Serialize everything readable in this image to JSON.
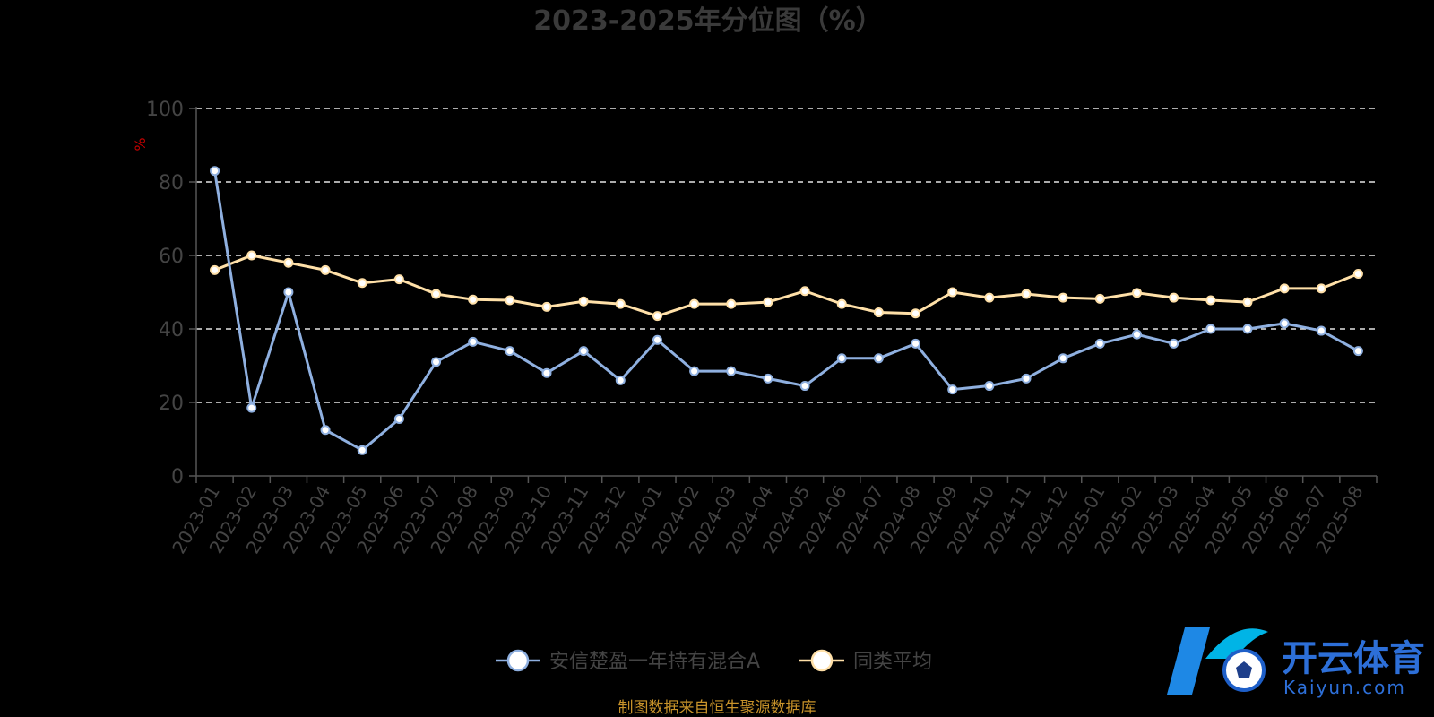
{
  "chart_data": {
    "type": "line",
    "title": "2023-2025年分位图（%）",
    "ylabel": "%",
    "ylim": [
      0,
      100
    ],
    "yticks": [
      0,
      20,
      40,
      60,
      80,
      100
    ],
    "grid": true,
    "legend_position": "bottom",
    "categories": [
      "2023-01",
      "2023-02",
      "2023-03",
      "2023-04",
      "2023-05",
      "2023-06",
      "2023-07",
      "2023-08",
      "2023-09",
      "2023-10",
      "2023-11",
      "2023-12",
      "2024-01",
      "2024-02",
      "2024-03",
      "2024-04",
      "2024-05",
      "2024-06",
      "2024-07",
      "2024-08",
      "2024-09",
      "2024-10",
      "2024-11",
      "2024-12",
      "2025-01",
      "2025-02",
      "2025-03",
      "2025-04",
      "2025-05",
      "2025-06",
      "2025-07",
      "2025-08"
    ],
    "series": [
      {
        "name": "安信楚盈一年持有混合A",
        "color": "#8fb0e0",
        "values": [
          83,
          18.5,
          50,
          12.5,
          7,
          15.5,
          31,
          36.5,
          34,
          28,
          34,
          26,
          37,
          28.5,
          28.5,
          26.5,
          24.5,
          32,
          32,
          36,
          23.5,
          24.5,
          26.5,
          32,
          36,
          38.5,
          36,
          40,
          40,
          41.5,
          39.5,
          34
        ]
      },
      {
        "name": "同类平均",
        "color": "#ffe0a8",
        "values": [
          56,
          60,
          58,
          56,
          52.5,
          53.5,
          49.5,
          48,
          47.8,
          46,
          47.5,
          46.8,
          43.5,
          46.8,
          46.8,
          47.3,
          50.3,
          46.8,
          44.5,
          44.2,
          50,
          48.5,
          49.5,
          48.5,
          48.2,
          49.8,
          48.5,
          47.8,
          47.3,
          51,
          51,
          55
        ]
      }
    ]
  },
  "source": "制图数据来自恒生聚源数据库",
  "watermark": {
    "cn": "开云体育",
    "en": "Kaiyun.com"
  }
}
